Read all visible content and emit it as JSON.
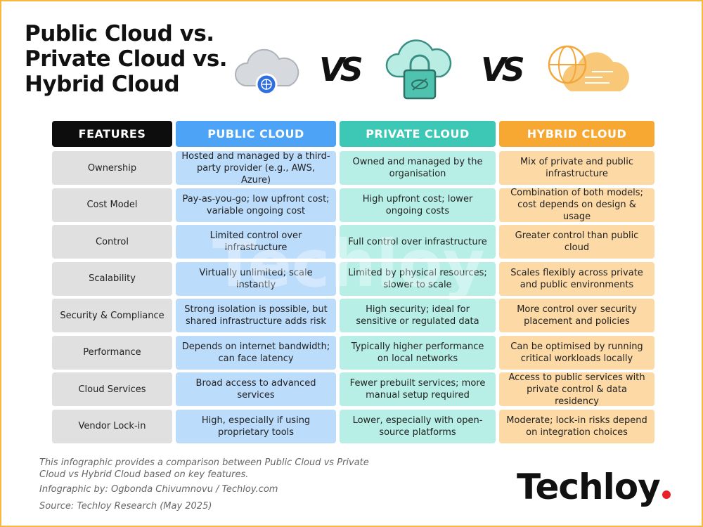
{
  "header": {
    "title": [
      "Public Cloud vs.",
      "Private Cloud vs.",
      "Hybrid Cloud"
    ],
    "versus": [
      "VS",
      "VS"
    ]
  },
  "table": {
    "columns": [
      "FEATURES",
      "PUBLIC CLOUD",
      "PRIVATE CLOUD",
      "HYBRID CLOUD"
    ],
    "rows": [
      [
        "Ownership",
        "Hosted and managed by a third-party provider (e.g., AWS, Azure)",
        "Owned and managed by the organisation",
        "Mix of private and public infrastructure"
      ],
      [
        "Cost Model",
        "Pay-as-you-go; low upfront cost; variable ongoing cost",
        "High upfront cost; lower ongoing costs",
        "Combination of both models; cost depends on design & usage"
      ],
      [
        "Control",
        "Limited control over infrastructure",
        "Full control over infrastructure",
        "Greater control than public cloud"
      ],
      [
        "Scalability",
        "Virtually unlimited; scale instantly",
        "Limited by physical resources; slower to scale",
        "Scales flexibly across private and public environments"
      ],
      [
        "Security & Compliance",
        "Strong isolation is possible, but shared infrastructure adds risk",
        "High security; ideal for sensitive or regulated data",
        "More control over security placement and policies"
      ],
      [
        "Performance",
        "Depends on internet bandwidth; can face latency",
        "Typically higher performance on local networks",
        "Can be optimised by running critical workloads locally"
      ],
      [
        "Cloud Services",
        "Broad access to advanced services",
        "Fewer prebuilt services; more manual setup required",
        "Access to public services with private control & data residency"
      ],
      [
        "Vendor Lock-in",
        "High, especially if using proprietary tools",
        "Lower, especially with open-source platforms",
        "Moderate; lock-in risks depend on integration choices"
      ]
    ]
  },
  "watermark": "Techloy",
  "footer": {
    "description": "This infographic provides a comparison between Public Cloud vs Private Cloud vs Hybrid Cloud based on key features.",
    "credit": "Infographic by: Ogbonda Chivumnovu / Techloy.com",
    "source": "Source: Techloy Research (May 2025)"
  },
  "brand": "Techloy"
}
